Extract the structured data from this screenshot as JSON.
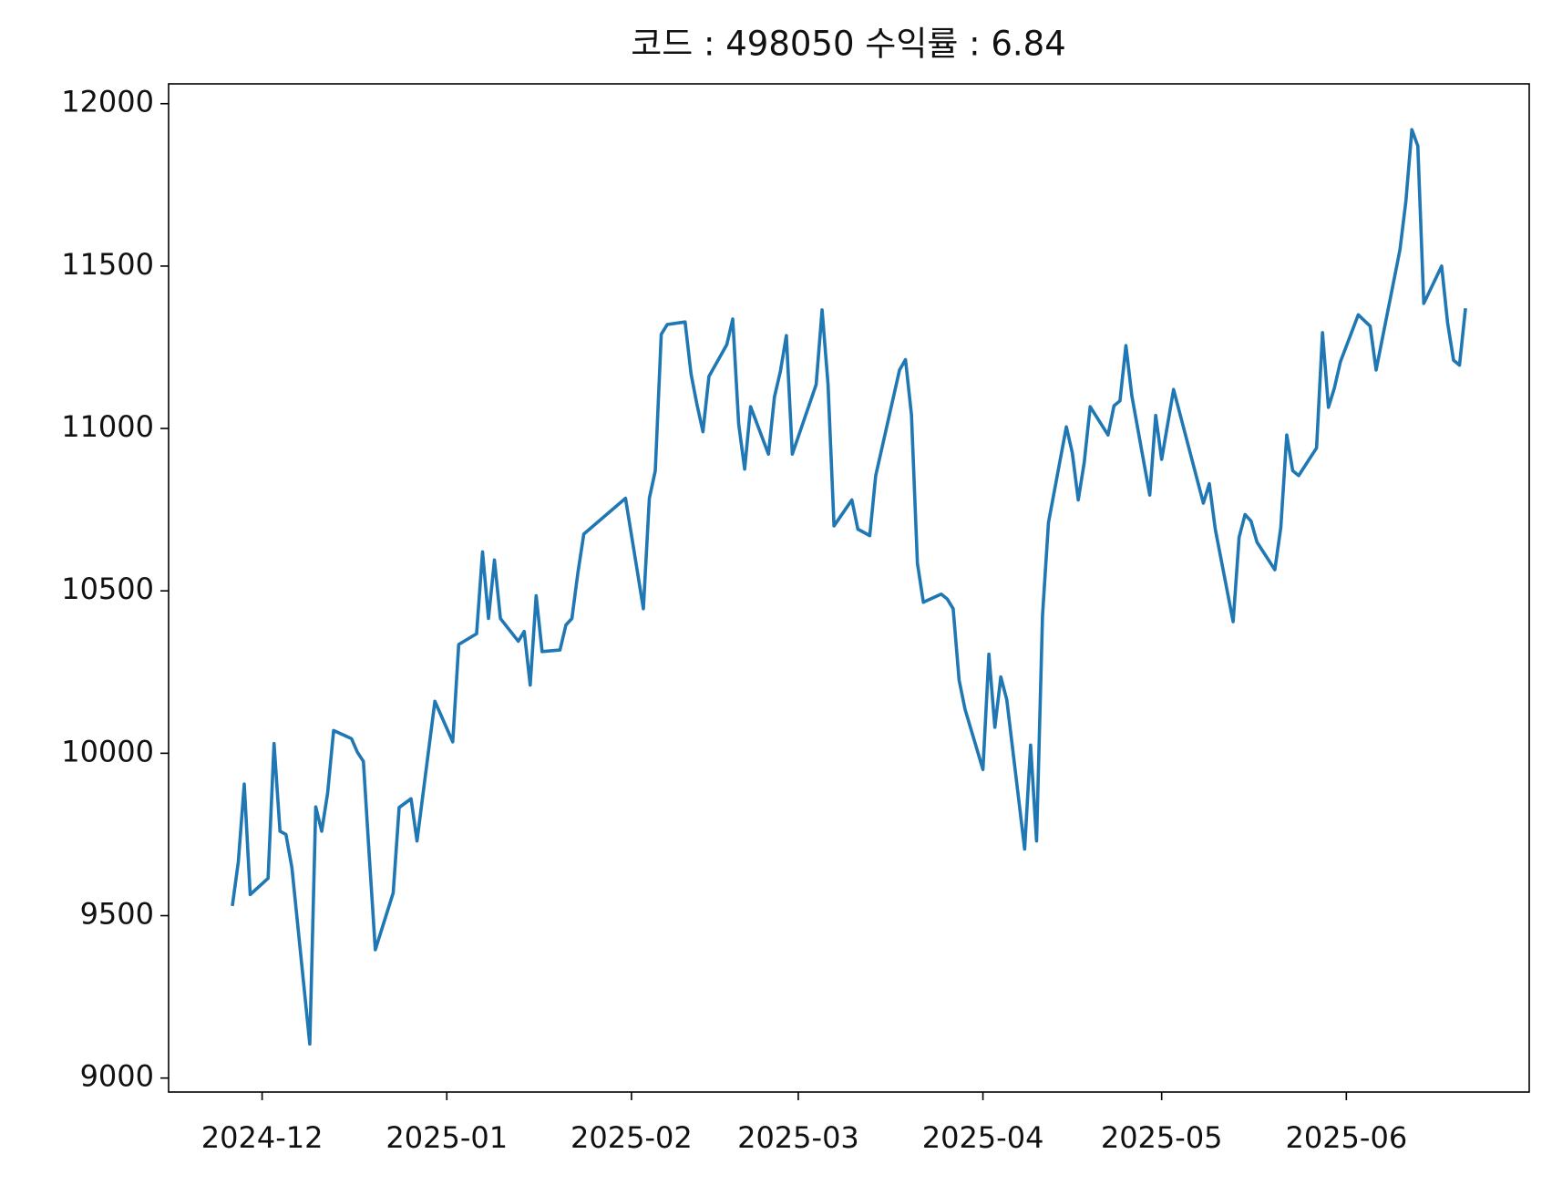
{
  "chart_data": {
    "type": "line",
    "title": "코드 : 498050 수익률 : 6.84",
    "color": "#1f77b4",
    "x": [
      20053,
      20054,
      20055,
      20056,
      20059,
      20060,
      20061,
      20062,
      20063,
      20066,
      20067,
      20068,
      20069,
      20070,
      20073,
      20074,
      20075,
      20076,
      20077,
      20080,
      20081,
      20083,
      20084,
      20087,
      20090,
      20091,
      20094,
      20095,
      20096,
      20097,
      20098,
      20101,
      20102,
      20103,
      20104,
      20105,
      20108,
      20109,
      20110,
      20111,
      20112,
      20119,
      20122,
      20123,
      20124,
      20125,
      20126,
      20129,
      20130,
      20131,
      20132,
      20133,
      20136,
      20137,
      20138,
      20139,
      20140,
      20143,
      20144,
      20145,
      20146,
      20147,
      20151,
      20152,
      20153,
      20154,
      20157,
      20158,
      20160,
      20161,
      20165,
      20166,
      20167,
      20168,
      20169,
      20172,
      20173,
      20174,
      20175,
      20176,
      20179,
      20180,
      20181,
      20182,
      20183,
      20186,
      20187,
      20188,
      20189,
      20190,
      20193,
      20194,
      20195,
      20196,
      20197,
      20200,
      20201,
      20202,
      20203,
      20204,
      20207,
      20208,
      20209,
      20211,
      20216,
      20217,
      20218,
      20221,
      20222,
      20223,
      20224,
      20225,
      20228,
      20229,
      20230,
      20231,
      20232,
      20235,
      20236,
      20237,
      20238,
      20239,
      20242,
      20244,
      20245,
      20249,
      20250,
      20251,
      20252,
      20253,
      20256,
      20257,
      20258,
      20259,
      20260
    ],
    "values": [
      9530,
      9665,
      9905,
      9565,
      9615,
      10030,
      9760,
      9750,
      9648,
      9105,
      9835,
      9760,
      9878,
      10070,
      10045,
      10003,
      9975,
      9680,
      9395,
      9570,
      9833,
      9860,
      9730,
      10160,
      10035,
      10335,
      10368,
      10620,
      10415,
      10595,
      10415,
      10345,
      10375,
      10210,
      10485,
      10313,
      10318,
      10395,
      10415,
      10555,
      10675,
      10785,
      10445,
      10785,
      10870,
      11290,
      11320,
      11328,
      11168,
      11073,
      10990,
      11160,
      11258,
      11337,
      11013,
      10875,
      11067,
      10921,
      11097,
      11176,
      11286,
      10921,
      11135,
      11365,
      11135,
      10700,
      10780,
      10690,
      10670,
      10855,
      11180,
      11212,
      11042,
      10585,
      10465,
      10490,
      10475,
      10445,
      10225,
      10135,
      9950,
      10305,
      10080,
      10235,
      10165,
      9705,
      10025,
      9730,
      10425,
      10710,
      11005,
      10925,
      10780,
      10895,
      11067,
      10980,
      11070,
      11085,
      11255,
      11100,
      10795,
      11040,
      10905,
      11120,
      10770,
      10830,
      10690,
      10405,
      10665,
      10735,
      10715,
      10650,
      10565,
      10695,
      10980,
      10870,
      10855,
      10940,
      11295,
      11065,
      11125,
      11205,
      11350,
      11315,
      11180,
      11550,
      11700,
      11920,
      11870,
      11385,
      11500,
      11325,
      11210,
      11195,
      11370
    ],
    "xlim": [
      20042.3,
      20270.7
    ],
    "xticks": [
      {
        "value": 20058,
        "label": "2024-12"
      },
      {
        "value": 20089,
        "label": "2025-01"
      },
      {
        "value": 20120,
        "label": "2025-02"
      },
      {
        "value": 20148,
        "label": "2025-03"
      },
      {
        "value": 20179,
        "label": "2025-04"
      },
      {
        "value": 20209,
        "label": "2025-05"
      },
      {
        "value": 20240,
        "label": "2025-06"
      }
    ],
    "ylim": [
      8957,
      12061
    ],
    "yticks": [
      9000,
      9500,
      10000,
      10500,
      11000,
      11500,
      12000
    ]
  }
}
